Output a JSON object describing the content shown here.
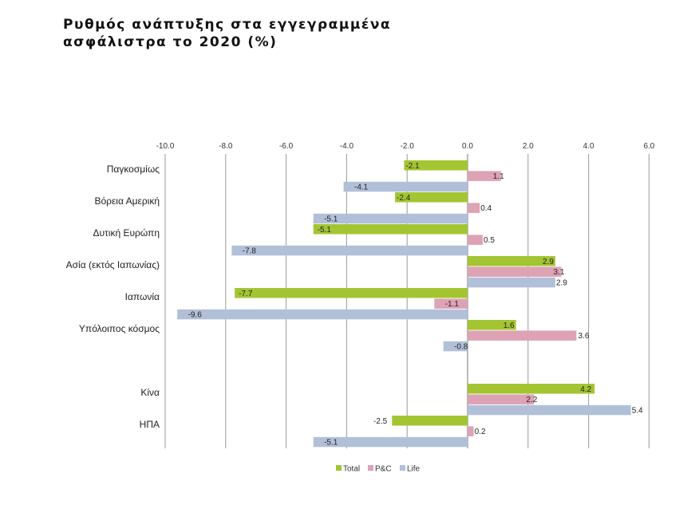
{
  "chart_data": {
    "type": "bar",
    "orientation": "horizontal",
    "title": [
      "Ρυθμός ανάπτυξης στα εγγεγραμμένα",
      "ασφάλιστρα το 2020 (%)"
    ],
    "xlim": [
      -10,
      6
    ],
    "ticks": [
      "-10.0",
      "-8.0",
      "-6.0",
      "-4.0",
      "-2.0",
      "0.0",
      "2.0",
      "4.0",
      "6.0"
    ],
    "tick_values": [
      -10,
      -8,
      -6,
      -4,
      -2,
      0,
      2,
      4,
      6
    ],
    "categories": [
      "Παγκοσμίως",
      "Βόρεια Αμερική",
      "Δυτική Ευρώπη",
      "Ασία (εκτός Ιαπωνίας)",
      "Ιαπωνία",
      "Υπόλοιπος κόσμος",
      "Κίνα",
      "ΗΠΑ"
    ],
    "series": [
      {
        "name": "Total",
        "color": "#a3c532",
        "values": [
          -2.1,
          -2.4,
          -5.1,
          2.9,
          -7.7,
          1.6,
          4.2,
          -2.5
        ],
        "labels": [
          "-2.1",
          "-2.4",
          "-5.1",
          "2.9",
          "-7.7",
          "1.6",
          "4.2",
          "-2.5"
        ]
      },
      {
        "name": "P&C",
        "color": "#dda2b4",
        "values": [
          1.1,
          0.4,
          0.5,
          3.1,
          -1.1,
          3.6,
          2.2,
          0.2
        ],
        "labels": [
          "1.1",
          "0.4",
          "0.5",
          "3.1",
          "-1.1",
          "3.6",
          "2.2",
          "0.2"
        ]
      },
      {
        "name": "Life",
        "color": "#b1c0d8",
        "values": [
          -4.1,
          -5.1,
          -7.8,
          2.9,
          -9.6,
          -0.8,
          5.4,
          -5.1
        ],
        "labels": [
          "-4.1",
          "-5.1",
          "-7.8",
          "2.9",
          "-9.6",
          "-0.8",
          "5.4",
          "-5.1"
        ]
      }
    ],
    "legend": "bottom-center",
    "grid": "vertical"
  }
}
